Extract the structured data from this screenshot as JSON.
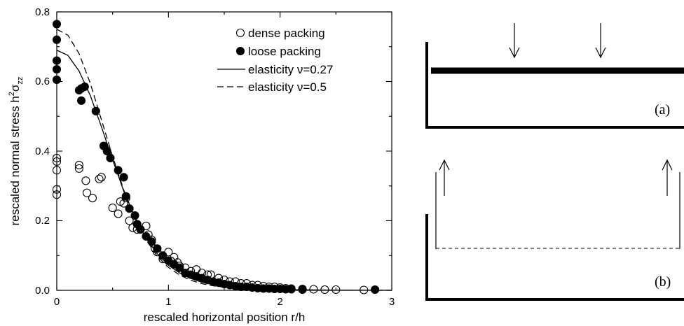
{
  "chart_data": {
    "type": "scatter",
    "xlabel": "rescaled horizontal position r/h",
    "ylabel_main": "rescaled normal stress h",
    "ylabel_sup": "2",
    "ylabel_sigma": "σ",
    "ylabel_sub": "zz",
    "xlim": [
      0,
      3
    ],
    "ylim": [
      0,
      0.8
    ],
    "x_ticks": [
      "0",
      "1",
      "2",
      "3"
    ],
    "y_ticks": [
      "0.0",
      "0.2",
      "0.4",
      "0.6",
      "0.8"
    ],
    "grid": false,
    "legend_position": "top-right",
    "legend": [
      {
        "label": "dense packing",
        "marker": "open-circle"
      },
      {
        "label": "loose packing",
        "marker": "filled-circle"
      },
      {
        "label": "elasticity ν=0.27",
        "line": "solid"
      },
      {
        "label": "elasticity ν=0.5",
        "line": "dashed"
      }
    ],
    "series": [
      {
        "name": "dense packing",
        "marker": "open",
        "points": [
          [
            0,
            0.38
          ],
          [
            0,
            0.37
          ],
          [
            0,
            0.345
          ],
          [
            0,
            0.29
          ],
          [
            0,
            0.275
          ],
          [
            0.2,
            0.36
          ],
          [
            0.2,
            0.35
          ],
          [
            0.26,
            0.315
          ],
          [
            0.27,
            0.28
          ],
          [
            0.32,
            0.265
          ],
          [
            0.38,
            0.32
          ],
          [
            0.4,
            0.325
          ],
          [
            0.5,
            0.237
          ],
          [
            0.55,
            0.22
          ],
          [
            0.57,
            0.255
          ],
          [
            0.6,
            0.25
          ],
          [
            0.62,
            0.265
          ],
          [
            0.65,
            0.2
          ],
          [
            0.68,
            0.18
          ],
          [
            0.72,
            0.175
          ],
          [
            0.8,
            0.185
          ],
          [
            0.82,
            0.16
          ],
          [
            0.85,
            0.145
          ],
          [
            0.88,
            0.12
          ],
          [
            0.9,
            0.11
          ],
          [
            0.95,
            0.09
          ],
          [
            1.0,
            0.11
          ],
          [
            1.02,
            0.085
          ],
          [
            1.05,
            0.095
          ],
          [
            1.08,
            0.08
          ],
          [
            1.1,
            0.07
          ],
          [
            1.15,
            0.065
          ],
          [
            1.2,
            0.055
          ],
          [
            1.25,
            0.06
          ],
          [
            1.3,
            0.05
          ],
          [
            1.35,
            0.045
          ],
          [
            1.38,
            0.045
          ],
          [
            1.45,
            0.035
          ],
          [
            1.5,
            0.03
          ],
          [
            1.55,
            0.025
          ],
          [
            1.6,
            0.025
          ],
          [
            1.65,
            0.02
          ],
          [
            1.7,
            0.02
          ],
          [
            1.75,
            0.015
          ],
          [
            1.8,
            0.015
          ],
          [
            1.85,
            0.012
          ],
          [
            1.9,
            0.01
          ],
          [
            1.95,
            0.01
          ],
          [
            2.0,
            0.008
          ],
          [
            2.05,
            0.006
          ],
          [
            2.1,
            0.005
          ],
          [
            2.2,
            0.004
          ],
          [
            2.3,
            0.003
          ],
          [
            2.4,
            0.002
          ],
          [
            2.5,
            0.002
          ],
          [
            2.75,
            0.001
          ]
        ]
      },
      {
        "name": "loose packing",
        "marker": "filled",
        "points": [
          [
            0,
            0.765
          ],
          [
            0,
            0.72
          ],
          [
            0,
            0.66
          ],
          [
            0,
            0.635
          ],
          [
            0,
            0.605
          ],
          [
            0.2,
            0.575
          ],
          [
            0.22,
            0.58
          ],
          [
            0.25,
            0.585
          ],
          [
            0.22,
            0.545
          ],
          [
            0.35,
            0.515
          ],
          [
            0.42,
            0.415
          ],
          [
            0.45,
            0.4
          ],
          [
            0.48,
            0.38
          ],
          [
            0.55,
            0.345
          ],
          [
            0.6,
            0.325
          ],
          [
            0.62,
            0.27
          ],
          [
            0.65,
            0.235
          ],
          [
            0.7,
            0.215
          ],
          [
            0.72,
            0.19
          ],
          [
            0.75,
            0.175
          ],
          [
            0.8,
            0.155
          ],
          [
            0.85,
            0.14
          ],
          [
            0.9,
            0.12
          ],
          [
            0.95,
            0.1
          ],
          [
            1.0,
            0.085
          ],
          [
            1.05,
            0.075
          ],
          [
            1.1,
            0.065
          ],
          [
            1.15,
            0.05
          ],
          [
            1.2,
            0.045
          ],
          [
            1.25,
            0.04
          ],
          [
            1.3,
            0.035
          ],
          [
            1.35,
            0.03
          ],
          [
            1.4,
            0.025
          ],
          [
            1.45,
            0.022
          ],
          [
            1.5,
            0.018
          ],
          [
            1.55,
            0.015
          ],
          [
            1.6,
            0.012
          ],
          [
            1.65,
            0.01
          ],
          [
            1.7,
            0.01
          ],
          [
            1.75,
            0.008
          ],
          [
            1.8,
            0.006
          ],
          [
            1.85,
            0.005
          ],
          [
            1.9,
            0.005
          ],
          [
            1.95,
            0.004
          ],
          [
            2.0,
            0.004
          ],
          [
            2.05,
            0.003
          ],
          [
            2.1,
            0.003
          ],
          [
            2.2,
            0.002
          ],
          [
            2.85,
            0.002
          ]
        ]
      },
      {
        "name": "elasticity ν=0.27",
        "line": "solid",
        "points": [
          [
            0,
            0.69
          ],
          [
            0.1,
            0.675
          ],
          [
            0.2,
            0.63
          ],
          [
            0.3,
            0.56
          ],
          [
            0.4,
            0.47
          ],
          [
            0.5,
            0.375
          ],
          [
            0.6,
            0.285
          ],
          [
            0.7,
            0.21
          ],
          [
            0.8,
            0.15
          ],
          [
            0.9,
            0.105
          ],
          [
            1.0,
            0.072
          ],
          [
            1.1,
            0.05
          ],
          [
            1.2,
            0.034
          ],
          [
            1.3,
            0.023
          ],
          [
            1.4,
            0.016
          ],
          [
            1.5,
            0.011
          ],
          [
            1.6,
            0.008
          ],
          [
            1.8,
            0.004
          ],
          [
            2.0,
            0.002
          ],
          [
            2.5,
            0.0006
          ],
          [
            3.0,
            0.0002
          ]
        ]
      },
      {
        "name": "elasticity ν=0.5",
        "line": "dashed",
        "points": [
          [
            0,
            0.75
          ],
          [
            0.1,
            0.733
          ],
          [
            0.2,
            0.68
          ],
          [
            0.3,
            0.595
          ],
          [
            0.4,
            0.49
          ],
          [
            0.5,
            0.385
          ],
          [
            0.6,
            0.288
          ],
          [
            0.7,
            0.207
          ],
          [
            0.8,
            0.145
          ],
          [
            0.9,
            0.098
          ],
          [
            1.0,
            0.066
          ],
          [
            1.1,
            0.044
          ],
          [
            1.2,
            0.029
          ],
          [
            1.3,
            0.019
          ],
          [
            1.4,
            0.013
          ],
          [
            1.5,
            0.009
          ],
          [
            1.6,
            0.006
          ],
          [
            1.8,
            0.003
          ],
          [
            2.0,
            0.0015
          ],
          [
            2.5,
            0.0004
          ],
          [
            3.0,
            0.0001
          ]
        ]
      }
    ]
  },
  "diagrams": {
    "a_label": "(a)",
    "b_label": "(b)"
  }
}
